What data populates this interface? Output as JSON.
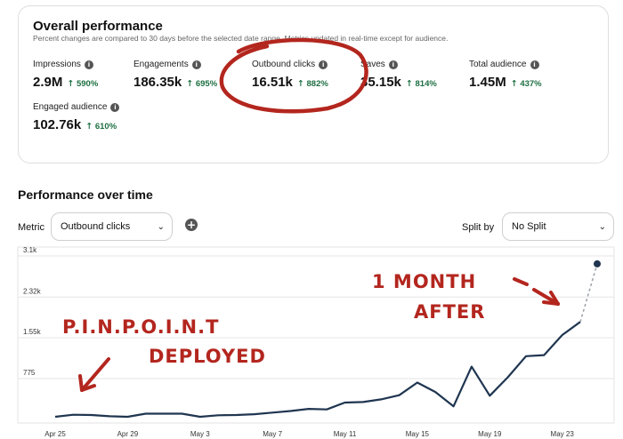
{
  "overall": {
    "title": "Overall performance",
    "subtitle": "Percent changes are compared to 30 days before the selected date range. Metrics updated in real-time except for audience.",
    "metrics": [
      {
        "label": "Impressions",
        "value": "2.9M",
        "change": "590%"
      },
      {
        "label": "Engagements",
        "value": "186.35k",
        "change": "695%"
      },
      {
        "label": "Outbound clicks",
        "value": "16.51k",
        "change": "882%"
      },
      {
        "label": "Saves",
        "value": "35.15k",
        "change": "814%"
      },
      {
        "label": "Total audience",
        "value": "1.45M",
        "change": "437%"
      },
      {
        "label": "Engaged audience",
        "value": "102.76k",
        "change": "610%"
      }
    ]
  },
  "performance": {
    "title": "Performance over time",
    "metric_label": "Metric",
    "metric_value": "Outbound clicks",
    "split_label": "Split by",
    "split_value": "No Split",
    "add_symbol": "+"
  },
  "annotations": {
    "left_line1": "P.I.N.P.O.I.N.T",
    "left_line2": "DEPLOYED",
    "right_line1": "1 MONTH",
    "right_line2": "AFTER"
  },
  "colors": {
    "accent_red": "#b3261e",
    "line": "#1f3550",
    "positive": "#1d6f42"
  },
  "chart_data": {
    "type": "line",
    "yticks": [
      3100,
      2320,
      1550,
      775
    ],
    "ytick_labels": [
      "3.1k",
      "2.32k",
      "1.55k",
      "775"
    ],
    "xtick_labels": [
      "Apr 25",
      "Apr 29",
      "May 3",
      "May 7",
      "May 11",
      "May 15",
      "May 19",
      "May 23"
    ],
    "ylim": [
      0,
      3100
    ],
    "x_start_label": "Apr 25",
    "series": [
      {
        "values": [
          50,
          90,
          85,
          60,
          50,
          110,
          110,
          110,
          50,
          80,
          85,
          100,
          130,
          160,
          200,
          190,
          320,
          330,
          380,
          460,
          700,
          520,
          250,
          1000,
          450,
          800,
          1200,
          1220,
          1600,
          1850,
          2950
        ]
      }
    ],
    "grid": true
  }
}
